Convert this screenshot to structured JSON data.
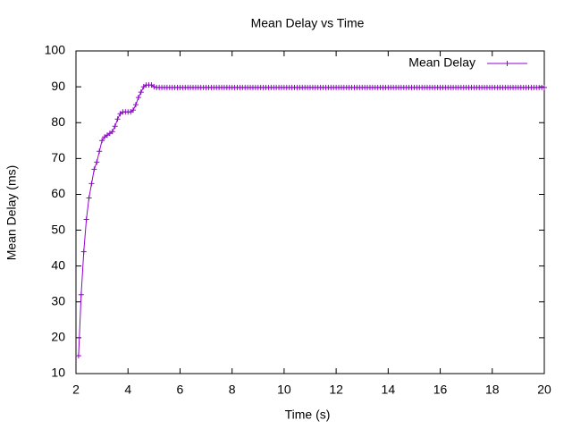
{
  "chart_data": {
    "type": "line",
    "title": "Mean Delay vs Time",
    "x_label": "Time (s)",
    "y_label": "Mean Delay (ms)",
    "x": [
      2.1,
      2.2,
      2.3,
      2.4,
      2.5,
      2.6,
      2.7,
      2.8,
      2.9,
      3,
      3.1,
      3.2,
      3.3,
      3.4,
      3.5,
      3.6,
      3.7,
      3.8,
      3.9,
      4,
      4.1,
      4.2,
      4.3,
      4.4,
      4.5,
      4.6,
      4.7,
      4.8,
      4.9,
      5,
      5.1,
      5.2,
      5.3,
      5.4,
      5.5,
      5.6,
      5.7,
      5.8,
      5.9,
      6,
      6.1,
      6.2,
      6.3,
      6.4,
      6.5,
      6.6,
      6.7,
      6.8,
      6.9,
      7,
      7.1,
      7.2,
      7.3,
      7.4,
      7.5,
      7.6,
      7.7,
      7.8,
      7.9,
      8,
      8.1,
      8.2,
      8.3,
      8.4,
      8.5,
      8.6,
      8.7,
      8.8,
      8.9,
      9,
      9.1,
      9.2,
      9.3,
      9.4,
      9.5,
      9.6,
      9.7,
      9.8,
      9.9,
      10,
      10.1,
      10.2,
      10.3,
      10.4,
      10.5,
      10.6,
      10.7,
      10.8,
      10.9,
      11,
      11.1,
      11.2,
      11.3,
      11.4,
      11.5,
      11.6,
      11.7,
      11.8,
      11.9,
      12,
      12.1,
      12.2,
      12.3,
      12.4,
      12.5,
      12.6,
      12.7,
      12.8,
      12.9,
      13,
      13.1,
      13.2,
      13.3,
      13.4,
      13.5,
      13.6,
      13.7,
      13.8,
      13.9,
      14,
      14.1,
      14.2,
      14.3,
      14.4,
      14.5,
      14.6,
      14.7,
      14.8,
      14.9,
      15,
      15.1,
      15.2,
      15.3,
      15.4,
      15.5,
      15.6,
      15.7,
      15.8,
      15.9,
      16,
      16.1,
      16.2,
      16.3,
      16.4,
      16.5,
      16.6,
      16.7,
      16.8,
      16.9,
      17,
      17.1,
      17.2,
      17.3,
      17.4,
      17.5,
      17.6,
      17.7,
      17.8,
      17.9,
      18,
      18.1,
      18.2,
      18.3,
      18.4,
      18.5,
      18.6,
      18.7,
      18.8,
      18.9,
      19,
      19.1,
      19.2,
      19.3,
      19.4,
      19.5,
      19.6,
      19.7,
      19.8,
      19.9,
      20
    ],
    "series": [
      {
        "name": "Mean Delay",
        "color": "#9400d3",
        "values": [
          15,
          32,
          44,
          53,
          59,
          63,
          67,
          69,
          72,
          75,
          76,
          76.5,
          77,
          77.5,
          79,
          81,
          82.5,
          83,
          83,
          83,
          83,
          83.5,
          85,
          87,
          88.5,
          90,
          90.5,
          90.5,
          90.5,
          90,
          89.8,
          89.8,
          89.8,
          89.8,
          89.8,
          89.8,
          89.8,
          89.8,
          89.8,
          89.8,
          89.8,
          89.8,
          89.8,
          89.8,
          89.8,
          89.8,
          89.8,
          89.8,
          89.8,
          89.8,
          89.8,
          89.8,
          89.8,
          89.8,
          89.8,
          89.8,
          89.8,
          89.8,
          89.8,
          89.8,
          89.8,
          89.8,
          89.8,
          89.8,
          89.8,
          89.8,
          89.8,
          89.8,
          89.8,
          89.8,
          89.8,
          89.8,
          89.8,
          89.8,
          89.8,
          89.8,
          89.8,
          89.8,
          89.8,
          89.8,
          89.8,
          89.8,
          89.8,
          89.8,
          89.8,
          89.8,
          89.8,
          89.8,
          89.8,
          89.8,
          89.8,
          89.8,
          89.8,
          89.8,
          89.8,
          89.8,
          89.8,
          89.8,
          89.8,
          89.8,
          89.8,
          89.8,
          89.8,
          89.8,
          89.8,
          89.8,
          89.8,
          89.8,
          89.8,
          89.8,
          89.8,
          89.8,
          89.8,
          89.8,
          89.8,
          89.8,
          89.8,
          89.8,
          89.8,
          89.8,
          89.8,
          89.8,
          89.8,
          89.8,
          89.8,
          89.8,
          89.8,
          89.8,
          89.8,
          89.8,
          89.8,
          89.8,
          89.8,
          89.8,
          89.8,
          89.8,
          89.8,
          89.8,
          89.8,
          89.8,
          89.8,
          89.8,
          89.8,
          89.8,
          89.8,
          89.8,
          89.8,
          89.8,
          89.8,
          89.8,
          89.8,
          89.8,
          89.8,
          89.8,
          89.8,
          89.8,
          89.8,
          89.8,
          89.8,
          89.8,
          89.8,
          89.8,
          89.8,
          89.8,
          89.8,
          89.8,
          89.8,
          89.8,
          89.8,
          89.8,
          89.8,
          89.8,
          89.8,
          89.8,
          89.8,
          89.8,
          89.8,
          89.8,
          89.8,
          89.8
        ]
      }
    ],
    "xlim": [
      2,
      20
    ],
    "xticks": [
      2,
      4,
      6,
      8,
      10,
      12,
      14,
      16,
      18,
      20
    ],
    "ylim": [
      10,
      100
    ],
    "yticks": [
      10,
      20,
      30,
      40,
      50,
      60,
      70,
      80,
      90,
      100
    ],
    "grid": false,
    "legend": "top-right"
  }
}
